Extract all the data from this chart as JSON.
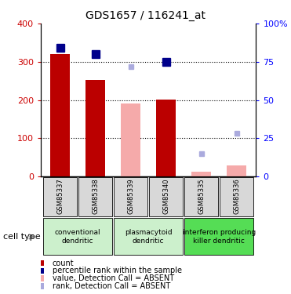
{
  "title": "GDS1657 / 116241_at",
  "samples": [
    "GSM85337",
    "GSM85338",
    "GSM85339",
    "GSM85340",
    "GSM85335",
    "GSM85336"
  ],
  "bar_values": [
    320,
    252,
    null,
    202,
    null,
    null
  ],
  "bar_absent_values": [
    null,
    null,
    190,
    null,
    12,
    28
  ],
  "rank_present": [
    84,
    80,
    null,
    75,
    null,
    null
  ],
  "rank_absent": [
    null,
    null,
    72,
    null,
    15,
    28
  ],
  "bar_color_present": "#bb0000",
  "bar_color_absent": "#f5aaaa",
  "rank_color_present": "#00008b",
  "rank_color_absent": "#aaaadd",
  "ylim_left": [
    0,
    400
  ],
  "ylim_right": [
    0,
    100
  ],
  "yticks_left": [
    0,
    100,
    200,
    300,
    400
  ],
  "yticks_right": [
    0,
    25,
    50,
    75,
    100
  ],
  "yticklabels_right": [
    "0",
    "25",
    "50",
    "75",
    "100%"
  ],
  "grid_values": [
    100,
    200,
    300
  ],
  "cell_types": [
    {
      "label": "conventional\ndendritic",
      "cols": [
        0,
        1
      ],
      "color": "#ccf0cc"
    },
    {
      "label": "plasmacytoid\ndendritic",
      "cols": [
        2,
        3
      ],
      "color": "#ccf0cc"
    },
    {
      "label": "interferon producing\nkiller dendritic",
      "cols": [
        4,
        5
      ],
      "color": "#55dd55"
    }
  ],
  "legend_items": [
    {
      "color": "#bb0000",
      "label": "count"
    },
    {
      "color": "#00008b",
      "label": "percentile rank within the sample"
    },
    {
      "color": "#f5aaaa",
      "label": "value, Detection Call = ABSENT"
    },
    {
      "color": "#aaaadd",
      "label": "rank, Detection Call = ABSENT"
    }
  ],
  "cell_type_label": "cell type",
  "bar_width": 0.55,
  "rank_marker_size": 7,
  "bg_color": "#d8d8d8"
}
